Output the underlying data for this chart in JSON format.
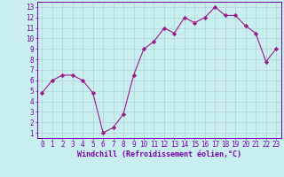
{
  "x": [
    0,
    1,
    2,
    3,
    4,
    5,
    6,
    7,
    8,
    9,
    10,
    11,
    12,
    13,
    14,
    15,
    16,
    17,
    18,
    19,
    20,
    21,
    22,
    23
  ],
  "y": [
    4.8,
    6.0,
    6.5,
    6.5,
    6.0,
    4.8,
    1.0,
    1.5,
    2.8,
    6.5,
    9.0,
    9.7,
    11.0,
    10.5,
    12.0,
    11.5,
    12.0,
    13.0,
    12.2,
    12.2,
    11.2,
    10.5,
    7.8,
    9.0
  ],
  "line_color": "#9b1a8a",
  "marker": "D",
  "marker_size": 2.2,
  "bg_color": "#c8eef0",
  "grid_color": "#aacccc",
  "xlim": [
    -0.5,
    23.5
  ],
  "ylim": [
    0.5,
    13.5
  ],
  "yticks": [
    1,
    2,
    3,
    4,
    5,
    6,
    7,
    8,
    9,
    10,
    11,
    12,
    13
  ],
  "xticks": [
    0,
    1,
    2,
    3,
    4,
    5,
    6,
    7,
    8,
    9,
    10,
    11,
    12,
    13,
    14,
    15,
    16,
    17,
    18,
    19,
    20,
    21,
    22,
    23
  ],
  "xlabel": "Windchill (Refroidissement éolien,°C)",
  "xlabel_color": "#7700aa",
  "tick_color": "#7700aa",
  "axis_color": "#7700aa",
  "font_size_xlabel": 6.0,
  "font_size_tick": 5.5
}
